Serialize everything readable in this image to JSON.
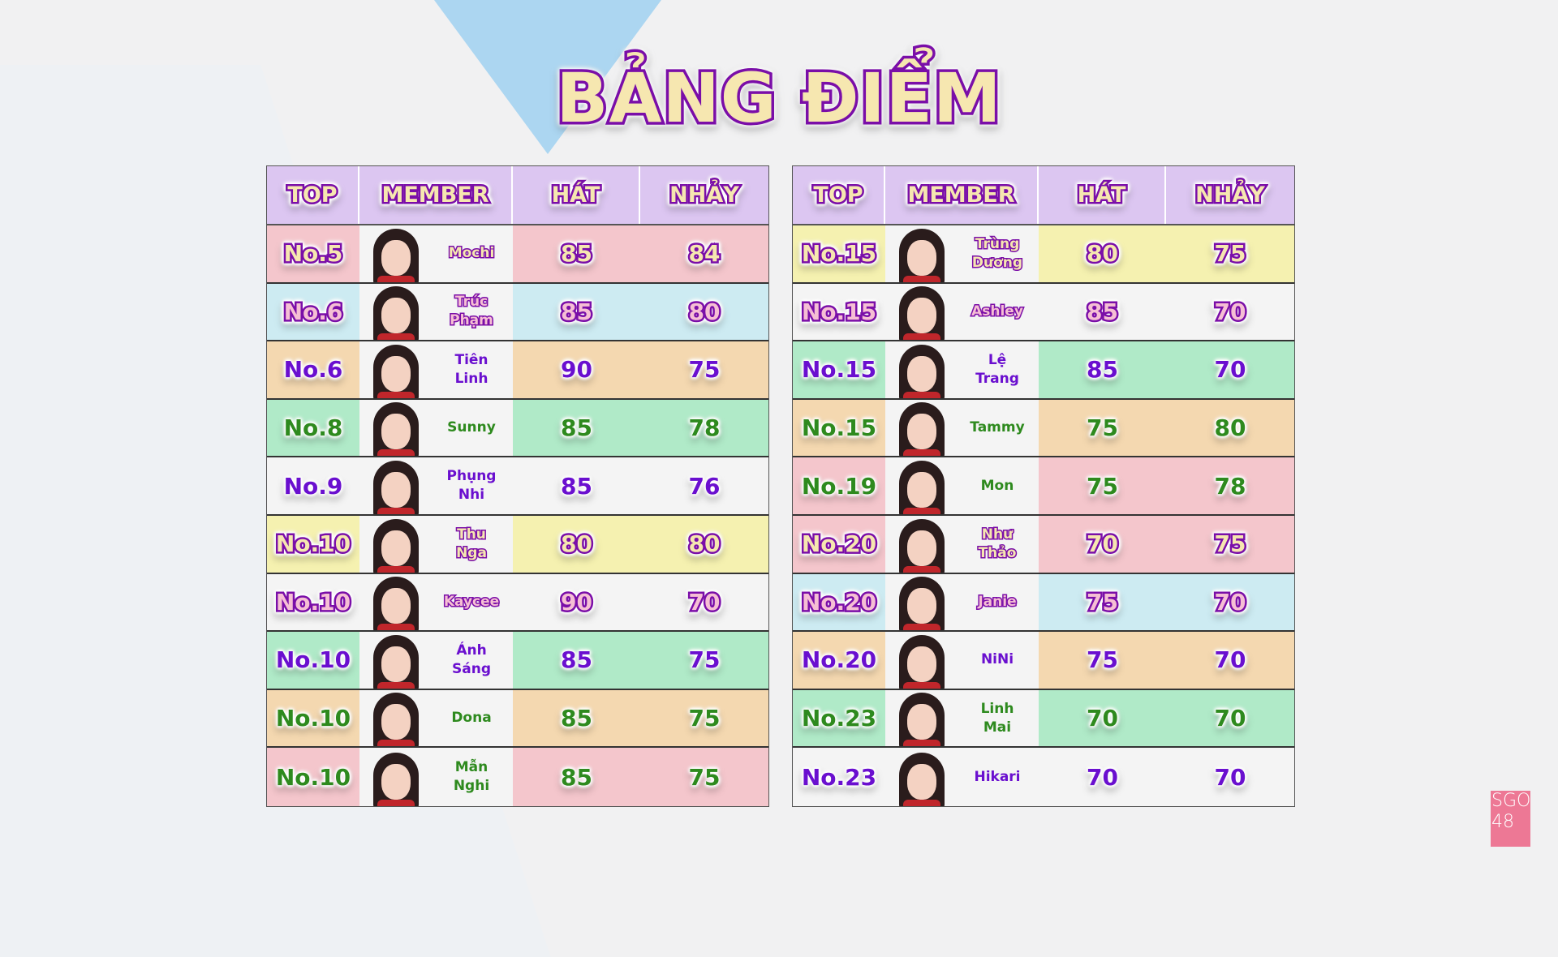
{
  "title": "BẢNG ĐIỂM",
  "headers": {
    "top": "TOP",
    "member": "MEMBER",
    "hat": "HÁT",
    "nhay": "NHẢY"
  },
  "logo": {
    "line1": "SGO",
    "line2": "48"
  },
  "colors": {
    "pink": "#f4c6cc",
    "blue": "#cdebf2",
    "orange": "#f4d8b0",
    "green": "#b0eac8",
    "white": "#f4f4f4",
    "yellow": "#f5f1b0",
    "header": "#dcc6f1",
    "purple_text": "#6a0fcf",
    "green_text": "#2e8a1e",
    "stroke": "#7a0ea8"
  },
  "tables": [
    {
      "rows": [
        {
          "rank": "No.5",
          "name": [
            "Mochi"
          ],
          "hat": "85",
          "nhay": "84",
          "color": "pink",
          "style": "cream"
        },
        {
          "rank": "No.6",
          "name": [
            "Trúc",
            "Phạm"
          ],
          "hat": "85",
          "nhay": "80",
          "color": "blue",
          "style": "pink"
        },
        {
          "rank": "No.6",
          "name": [
            "Tiên",
            "Linh"
          ],
          "hat": "90",
          "nhay": "75",
          "color": "orange",
          "style": "purple"
        },
        {
          "rank": "No.8",
          "name": [
            "Sunny"
          ],
          "hat": "85",
          "nhay": "78",
          "color": "green",
          "style": "green"
        },
        {
          "rank": "No.9",
          "name": [
            "Phụng",
            "Nhi"
          ],
          "hat": "85",
          "nhay": "76",
          "color": "white",
          "style": "purple"
        },
        {
          "rank": "No.10",
          "name": [
            "Thu",
            "Nga"
          ],
          "hat": "80",
          "nhay": "80",
          "color": "yellow",
          "style": "cream"
        },
        {
          "rank": "No.10",
          "name": [
            "Kaycee"
          ],
          "hat": "90",
          "nhay": "70",
          "color": "white",
          "style": "pink"
        },
        {
          "rank": "No.10",
          "name": [
            "Ánh",
            "Sáng"
          ],
          "hat": "85",
          "nhay": "75",
          "color": "green",
          "style": "purple"
        },
        {
          "rank": "No.10",
          "name": [
            "Dona"
          ],
          "hat": "85",
          "nhay": "75",
          "color": "orange",
          "style": "green"
        },
        {
          "rank": "No.10",
          "name": [
            "Mẫn",
            "Nghi"
          ],
          "hat": "85",
          "nhay": "75",
          "color": "pink",
          "style": "green"
        }
      ]
    },
    {
      "rows": [
        {
          "rank": "No.15",
          "name": [
            "Trùng",
            "Dương"
          ],
          "hat": "80",
          "nhay": "75",
          "color": "yellow",
          "style": "cream"
        },
        {
          "rank": "No.15",
          "name": [
            "Ashley"
          ],
          "hat": "85",
          "nhay": "70",
          "color": "white",
          "style": "pink"
        },
        {
          "rank": "No.15",
          "name": [
            "Lệ",
            "Trang"
          ],
          "hat": "85",
          "nhay": "70",
          "color": "green",
          "style": "purple"
        },
        {
          "rank": "No.15",
          "name": [
            "Tammy"
          ],
          "hat": "75",
          "nhay": "80",
          "color": "orange",
          "style": "green"
        },
        {
          "rank": "No.19",
          "name": [
            "Mon"
          ],
          "hat": "75",
          "nhay": "78",
          "color": "pink",
          "style": "green"
        },
        {
          "rank": "No.20",
          "name": [
            "Như",
            "Thảo"
          ],
          "hat": "70",
          "nhay": "75",
          "color": "pink",
          "style": "cream"
        },
        {
          "rank": "No.20",
          "name": [
            "Janie"
          ],
          "hat": "75",
          "nhay": "70",
          "color": "blue",
          "style": "pink"
        },
        {
          "rank": "No.20",
          "name": [
            "NiNi"
          ],
          "hat": "75",
          "nhay": "70",
          "color": "orange",
          "style": "purple"
        },
        {
          "rank": "No.23",
          "name": [
            "Linh",
            "Mai"
          ],
          "hat": "70",
          "nhay": "70",
          "color": "green",
          "style": "green"
        },
        {
          "rank": "No.23",
          "name": [
            "Hikari"
          ],
          "hat": "70",
          "nhay": "70",
          "color": "white",
          "style": "purple"
        }
      ]
    }
  ]
}
